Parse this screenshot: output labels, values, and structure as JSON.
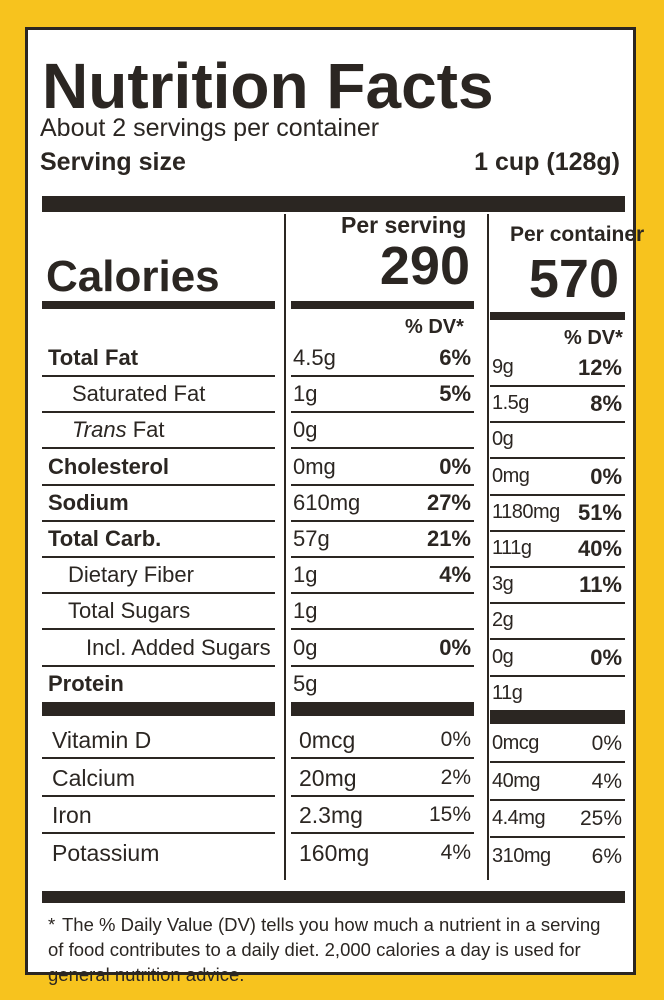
{
  "label": {
    "title": "Nutrition Facts",
    "servings_per_container": "About 2 servings per container",
    "serving_size_label": "Serving size",
    "serving_size_value": "1 cup (128g)",
    "per_serving_header": "Per serving",
    "per_container_header": "Per container",
    "calories_label": "Calories",
    "calories_per_serving": "290",
    "calories_per_container": "570",
    "dv_header_serving": "% DV*",
    "dv_header_container": "% DV*",
    "nutrients": [
      {
        "name": "Total Fat",
        "serving_amount": "4.5g",
        "serving_dv": "6%",
        "container_amount": "9g",
        "container_dv": "12%"
      },
      {
        "name": "Saturated Fat",
        "serving_amount": "1g",
        "serving_dv": "5%",
        "container_amount": "1.5g",
        "container_dv": "8%"
      },
      {
        "name_italic": "Trans",
        "name_rest": " Fat",
        "serving_amount": "0g",
        "serving_dv": "",
        "container_amount": "0g",
        "container_dv": ""
      },
      {
        "name": "Cholesterol",
        "serving_amount": "0mg",
        "serving_dv": "0%",
        "container_amount": "0mg",
        "container_dv": "0%"
      },
      {
        "name": "Sodium",
        "serving_amount": "610mg",
        "serving_dv": "27%",
        "container_amount": "1180mg",
        "container_dv": "51%"
      },
      {
        "name": "Total Carb.",
        "serving_amount": "57g",
        "serving_dv": "21%",
        "container_amount": "111g",
        "container_dv": "40%"
      },
      {
        "name": "Dietary Fiber",
        "serving_amount": "1g",
        "serving_dv": "4%",
        "container_amount": "3g",
        "container_dv": "11%"
      },
      {
        "name": "Total Sugars",
        "serving_amount": "1g",
        "serving_dv": "",
        "container_amount": "2g",
        "container_dv": ""
      },
      {
        "name": "Incl. Added Sugars",
        "serving_amount": "0g",
        "serving_dv": "0%",
        "container_amount": "0g",
        "container_dv": "0%"
      },
      {
        "name": "Protein",
        "serving_amount": "5g",
        "serving_dv": "",
        "container_amount": "11g",
        "container_dv": ""
      }
    ],
    "vitamins": [
      {
        "name": "Vitamin D",
        "serving_amount": "0mcg",
        "serving_dv": "0%",
        "container_amount": "0mcg",
        "container_dv": "0%"
      },
      {
        "name": "Calcium",
        "serving_amount": "20mg",
        "serving_dv": "2%",
        "container_amount": "40mg",
        "container_dv": "4%"
      },
      {
        "name": "Iron",
        "serving_amount": "2.3mg",
        "serving_dv": "15%",
        "container_amount": "4.4mg",
        "container_dv": "25%"
      },
      {
        "name": "Potassium",
        "serving_amount": "160mg",
        "serving_dv": "4%",
        "container_amount": "310mg",
        "container_dv": "6%"
      }
    ],
    "footnote_star": "*",
    "footnote": "The % Daily Value (DV) tells you how much a nutrient in a serving of food contributes to a daily diet. 2,000 calories a day is used for general nutrition advice."
  },
  "colors": {
    "background": "#f7c31e",
    "ink": "#2b2622",
    "panel": "#ffffff"
  }
}
